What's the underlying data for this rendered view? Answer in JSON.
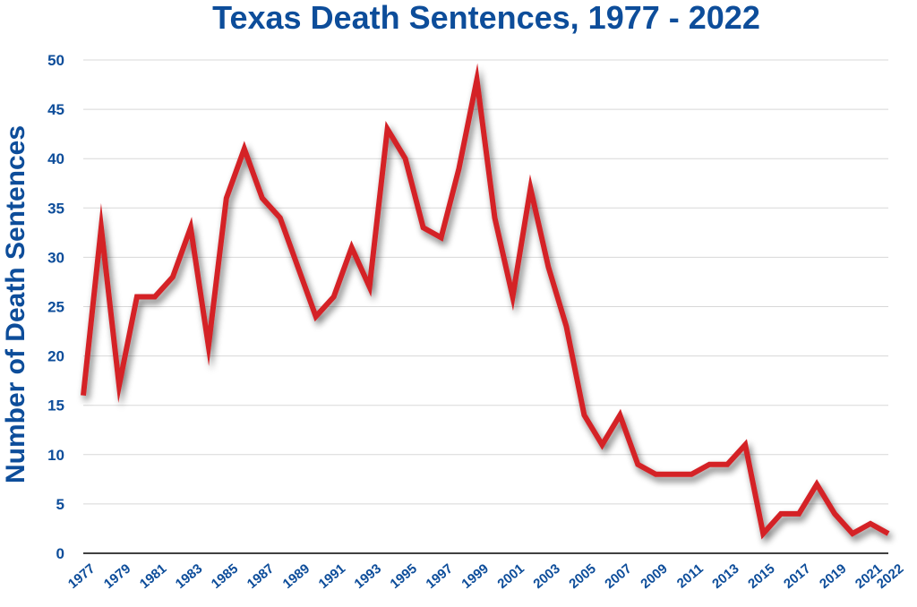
{
  "chart_data": {
    "type": "line",
    "title": "Texas Death Sentences, 1977 - 2022",
    "xlabel": "",
    "ylabel": "Number of Death Sentences",
    "ylim": [
      0,
      50
    ],
    "yticks": [
      0,
      5,
      10,
      15,
      20,
      25,
      30,
      35,
      40,
      45,
      50
    ],
    "xlim": [
      1977,
      2022
    ],
    "xticks": [
      1977,
      1979,
      1981,
      1983,
      1985,
      1987,
      1989,
      1991,
      1993,
      1995,
      1997,
      1999,
      2001,
      2003,
      2005,
      2007,
      2009,
      2011,
      2013,
      2015,
      2017,
      2019,
      2021,
      2022
    ],
    "grid": true,
    "series": [
      {
        "color": "#d42027",
        "x": [
          1977,
          1978,
          1979,
          1980,
          1981,
          1982,
          1983,
          1984,
          1985,
          1986,
          1987,
          1988,
          1989,
          1990,
          1991,
          1992,
          1993,
          1994,
          1995,
          1996,
          1997,
          1998,
          1999,
          2000,
          2001,
          2002,
          2003,
          2004,
          2005,
          2006,
          2007,
          2008,
          2009,
          2010,
          2011,
          2012,
          2013,
          2014,
          2015,
          2016,
          2017,
          2018,
          2019,
          2020,
          2021,
          2022
        ],
        "values": [
          16,
          33,
          17,
          26,
          26,
          28,
          33,
          21,
          36,
          41,
          36,
          34,
          29,
          24,
          26,
          31,
          27,
          43,
          40,
          33,
          32,
          39,
          48,
          34,
          26,
          37,
          29,
          23,
          14,
          11,
          14,
          9,
          8,
          8,
          8,
          9,
          9,
          11,
          2,
          4,
          4,
          7,
          4,
          2,
          3,
          2
        ]
      }
    ]
  }
}
